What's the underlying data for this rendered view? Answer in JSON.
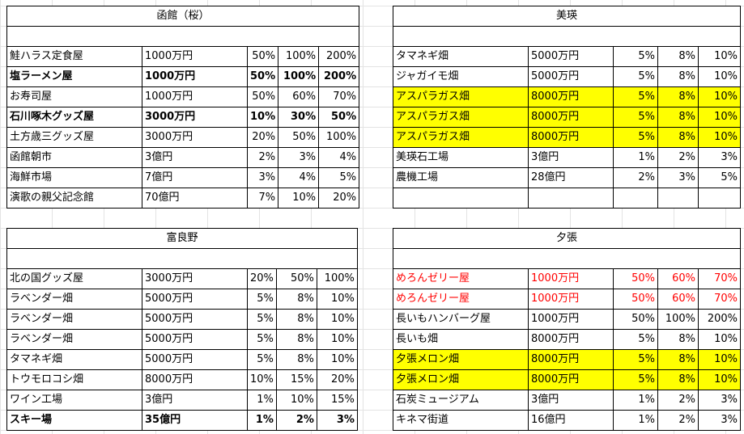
{
  "blocks": {
    "hakodate": {
      "title": "函館（桜）",
      "rows": [
        {
          "name": "鮭ハラス定食屋",
          "price": "1000万円",
          "p1": "50%",
          "p2": "100%",
          "p3": "200%",
          "style": ""
        },
        {
          "name": "塩ラーメン屋",
          "price": "1000万円",
          "p1": "50%",
          "p2": "100%",
          "p3": "200%",
          "style": "bold"
        },
        {
          "name": "お寿司屋",
          "price": "1000万円",
          "p1": "50%",
          "p2": "60%",
          "p3": "70%",
          "style": ""
        },
        {
          "name": "石川啄木グッズ屋",
          "price": "3000万円",
          "p1": "10%",
          "p2": "30%",
          "p3": "50%",
          "style": "bold"
        },
        {
          "name": "土方歳三グッズ屋",
          "price": "3000万円",
          "p1": "20%",
          "p2": "50%",
          "p3": "100%",
          "style": ""
        },
        {
          "name": "函館朝市",
          "price": "3億円",
          "p1": "2%",
          "p2": "3%",
          "p3": "4%",
          "style": ""
        },
        {
          "name": "海鮮市場",
          "price": "7億円",
          "p1": "3%",
          "p2": "4%",
          "p3": "5%",
          "style": ""
        },
        {
          "name": "演歌の親父記念館",
          "price": "70億円",
          "p1": "7%",
          "p2": "10%",
          "p3": "20%",
          "style": ""
        }
      ]
    },
    "biei": {
      "title": "美瑛",
      "rows": [
        {
          "name": "タマネギ畑",
          "price": "5000万円",
          "p1": "5%",
          "p2": "8%",
          "p3": "10%",
          "style": ""
        },
        {
          "name": "ジャガイモ畑",
          "price": "5000万円",
          "p1": "5%",
          "p2": "8%",
          "p3": "10%",
          "style": ""
        },
        {
          "name": "アスパラガス畑",
          "price": "8000万円",
          "p1": "5%",
          "p2": "8%",
          "p3": "10%",
          "style": "yellow"
        },
        {
          "name": "アスパラガス畑",
          "price": "8000万円",
          "p1": "5%",
          "p2": "8%",
          "p3": "10%",
          "style": "yellow"
        },
        {
          "name": "アスパラガス畑",
          "price": "8000万円",
          "p1": "5%",
          "p2": "8%",
          "p3": "10%",
          "style": "yellow"
        },
        {
          "name": "美瑛石工場",
          "price": "3億円",
          "p1": "1%",
          "p2": "2%",
          "p3": "3%",
          "style": ""
        },
        {
          "name": "農機工場",
          "price": "28億円",
          "p1": "2%",
          "p2": "3%",
          "p3": "5%",
          "style": ""
        },
        {
          "name": "",
          "price": "",
          "p1": "",
          "p2": "",
          "p3": "",
          "style": ""
        }
      ]
    },
    "furano": {
      "title": "富良野",
      "rows": [
        {
          "name": "北の国グッズ屋",
          "price": "3000万円",
          "p1": "20%",
          "p2": "50%",
          "p3": "100%",
          "style": ""
        },
        {
          "name": "ラベンダー畑",
          "price": "5000万円",
          "p1": "5%",
          "p2": "8%",
          "p3": "10%",
          "style": ""
        },
        {
          "name": "ラベンダー畑",
          "price": "5000万円",
          "p1": "5%",
          "p2": "8%",
          "p3": "10%",
          "style": ""
        },
        {
          "name": "ラベンダー畑",
          "price": "5000万円",
          "p1": "5%",
          "p2": "8%",
          "p3": "10%",
          "style": ""
        },
        {
          "name": "タマネギ畑",
          "price": "5000万円",
          "p1": "5%",
          "p2": "8%",
          "p3": "10%",
          "style": ""
        },
        {
          "name": "トウモロコシ畑",
          "price": "8000万円",
          "p1": "10%",
          "p2": "15%",
          "p3": "20%",
          "style": ""
        },
        {
          "name": "ワイン工場",
          "price": "3億円",
          "p1": "1%",
          "p2": "10%",
          "p3": "15%",
          "style": ""
        },
        {
          "name": "スキー場",
          "price": "35億円",
          "p1": "1%",
          "p2": "2%",
          "p3": "3%",
          "style": "bold"
        }
      ]
    },
    "yubari": {
      "title": "夕張",
      "rows": [
        {
          "name": "めろんゼリー屋",
          "price": "1000万円",
          "p1": "50%",
          "p2": "60%",
          "p3": "70%",
          "style": "red"
        },
        {
          "name": "めろんゼリー屋",
          "price": "1000万円",
          "p1": "50%",
          "p2": "60%",
          "p3": "70%",
          "style": "red"
        },
        {
          "name": "長いもハンバーグ屋",
          "price": "1000万円",
          "p1": "50%",
          "p2": "100%",
          "p3": "200%",
          "style": ""
        },
        {
          "name": "長いも畑",
          "price": "8000万円",
          "p1": "5%",
          "p2": "8%",
          "p3": "10%",
          "style": ""
        },
        {
          "name": "夕張メロン畑",
          "price": "8000万円",
          "p1": "5%",
          "p2": "8%",
          "p3": "10%",
          "style": "yellow"
        },
        {
          "name": "夕張メロン畑",
          "price": "8000万円",
          "p1": "5%",
          "p2": "8%",
          "p3": "10%",
          "style": "yellow"
        },
        {
          "name": "石炭ミュージアム",
          "price": "3億円",
          "p1": "1%",
          "p2": "2%",
          "p3": "3%",
          "style": ""
        },
        {
          "name": "キネマ街道",
          "price": "16億円",
          "p1": "1%",
          "p2": "2%",
          "p3": "3%",
          "style": ""
        }
      ]
    }
  }
}
